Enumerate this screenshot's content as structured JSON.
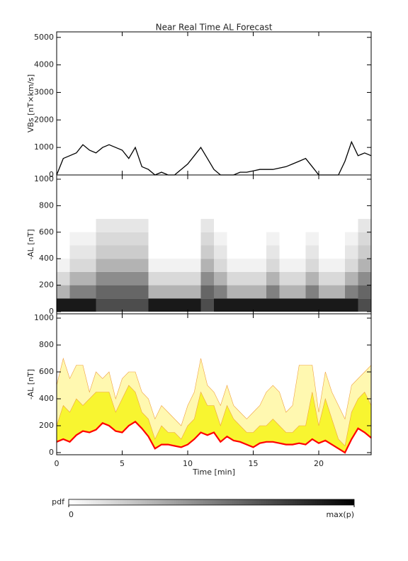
{
  "chart_data": [
    {
      "type": "line",
      "title": "Near Real Time AL Forecast",
      "ylabel": "VBs [nT×km/s]",
      "color": "#000000",
      "x": [
        0,
        0.5,
        1,
        1.5,
        2,
        2.5,
        3,
        3.5,
        4,
        4.5,
        5,
        5.5,
        6,
        6.5,
        7,
        7.5,
        8,
        8.5,
        9,
        9.5,
        10,
        10.5,
        11,
        11.5,
        12,
        12.5,
        13,
        13.5,
        14,
        14.5,
        15,
        15.5,
        16,
        16.5,
        17,
        17.5,
        18,
        18.5,
        19,
        19.5,
        20,
        20.5,
        21,
        21.5,
        22,
        22.5,
        23,
        23.5,
        24
      ],
      "values": [
        0,
        600,
        700,
        800,
        1100,
        900,
        800,
        1000,
        1100,
        1000,
        900,
        600,
        1000,
        300,
        200,
        0,
        100,
        0,
        0,
        200,
        400,
        700,
        1000,
        600,
        200,
        0,
        0,
        0,
        100,
        100,
        150,
        200,
        200,
        200,
        250,
        300,
        400,
        500,
        600,
        300,
        0,
        0,
        0,
        0,
        500,
        1200,
        700,
        800,
        700
      ],
      "xlim": [
        0,
        24
      ],
      "ylim": [
        0,
        5200
      ],
      "yticks": [
        0,
        1000,
        2000,
        3000,
        4000,
        5000
      ]
    },
    {
      "type": "heatmap",
      "ylabel": "-AL [nT]",
      "xbins": [
        0,
        1,
        2,
        3,
        4,
        5,
        6,
        7,
        8,
        9,
        10,
        11,
        12,
        13,
        14,
        15,
        16,
        17,
        18,
        19,
        20,
        21,
        22,
        23,
        24
      ],
      "ybins": [
        0,
        100,
        200,
        300,
        400,
        500,
        600,
        700
      ],
      "z": [
        [
          0.9,
          0.9,
          0.9,
          0.7,
          0.7,
          0.7,
          0.7,
          0.9,
          0.9,
          0.9,
          0.9,
          0.7,
          0.9,
          0.9,
          0.9,
          0.9,
          0.9,
          0.9,
          0.9,
          0.9,
          0.9,
          0.9,
          0.9,
          0.7
        ],
        [
          0.3,
          0.5,
          0.5,
          0.6,
          0.6,
          0.6,
          0.6,
          0.3,
          0.3,
          0.3,
          0.3,
          0.6,
          0.5,
          0.3,
          0.3,
          0.3,
          0.5,
          0.3,
          0.3,
          0.5,
          0.3,
          0.3,
          0.5,
          0.6
        ],
        [
          0.15,
          0.3,
          0.3,
          0.45,
          0.45,
          0.45,
          0.45,
          0.15,
          0.15,
          0.15,
          0.15,
          0.45,
          0.3,
          0.15,
          0.15,
          0.15,
          0.3,
          0.15,
          0.15,
          0.3,
          0.15,
          0.15,
          0.3,
          0.45
        ],
        [
          0.05,
          0.15,
          0.15,
          0.3,
          0.3,
          0.3,
          0.3,
          0.05,
          0.05,
          0.05,
          0.05,
          0.3,
          0.15,
          0.05,
          0.05,
          0.05,
          0.15,
          0.05,
          0.05,
          0.15,
          0.05,
          0.05,
          0.15,
          0.3
        ],
        [
          0,
          0.1,
          0.1,
          0.2,
          0.2,
          0.2,
          0.2,
          0,
          0,
          0,
          0,
          0.2,
          0.1,
          0,
          0,
          0,
          0.1,
          0,
          0,
          0.1,
          0,
          0,
          0.1,
          0.2
        ],
        [
          0,
          0.05,
          0.05,
          0.15,
          0.15,
          0.15,
          0.15,
          0,
          0,
          0,
          0,
          0.15,
          0.05,
          0,
          0,
          0,
          0.05,
          0,
          0,
          0.05,
          0,
          0,
          0.05,
          0.15
        ],
        [
          0,
          0,
          0,
          0.1,
          0.1,
          0.1,
          0.1,
          0,
          0,
          0,
          0,
          0.1,
          0,
          0,
          0,
          0,
          0,
          0,
          0,
          0,
          0,
          0,
          0,
          0.1
        ]
      ],
      "xlim": [
        0,
        24
      ],
      "ylim": [
        -16,
        1032
      ],
      "yticks": [
        0,
        200,
        400,
        600,
        800,
        1000
      ],
      "colorbar": {
        "label": "pdf",
        "zlim": [
          0,
          1
        ],
        "ticks": [
          0,
          {
            "value": 1,
            "label": "max(p)"
          }
        ]
      }
    },
    {
      "type": "band",
      "ylabel": "-AL [nT]",
      "xlabel": "Time [min]",
      "edge_color": "#f0a040",
      "x": [
        0,
        0.5,
        1,
        1.5,
        2,
        2.5,
        3,
        3.5,
        4,
        4.5,
        5,
        5.5,
        6,
        6.5,
        7,
        7.5,
        8,
        8.5,
        9,
        9.5,
        10,
        10.5,
        11,
        11.5,
        12,
        12.5,
        13,
        13.5,
        14,
        14.5,
        15,
        15.5,
        16,
        16.5,
        17,
        17.5,
        18,
        18.5,
        19,
        19.5,
        20,
        20.5,
        21,
        21.5,
        22,
        22.5,
        23,
        23.5,
        24
      ],
      "series": [
        {
          "color": "#ff0000",
          "values": [
            80,
            100,
            80,
            130,
            160,
            150,
            170,
            220,
            200,
            160,
            150,
            200,
            230,
            180,
            120,
            30,
            60,
            60,
            50,
            40,
            60,
            100,
            150,
            130,
            150,
            80,
            120,
            90,
            80,
            60,
            40,
            70,
            80,
            80,
            70,
            60,
            60,
            70,
            60,
            100,
            70,
            90,
            60,
            30,
            0,
            100,
            180,
            150,
            110
          ]
        },
        {
          "color": "#fff8b0",
          "values": [
            500,
            700,
            550,
            650,
            650,
            450,
            600,
            550,
            600,
            400,
            550,
            600,
            600,
            450,
            400,
            250,
            350,
            300,
            250,
            200,
            350,
            450,
            700,
            500,
            450,
            350,
            500,
            350,
            300,
            250,
            300,
            350,
            450,
            500,
            450,
            300,
            350,
            650,
            650,
            650,
            300,
            600,
            450,
            350,
            250,
            500,
            550,
            600,
            650
          ]
        },
        {
          "color": "#f8f530",
          "values": [
            200,
            350,
            300,
            400,
            350,
            400,
            450,
            450,
            450,
            300,
            400,
            500,
            450,
            300,
            250,
            100,
            200,
            150,
            150,
            100,
            200,
            250,
            450,
            350,
            350,
            200,
            350,
            250,
            200,
            150,
            150,
            200,
            200,
            250,
            200,
            150,
            150,
            200,
            200,
            450,
            200,
            400,
            250,
            100,
            50,
            300,
            400,
            450,
            350
          ]
        }
      ],
      "xlim": [
        0,
        24
      ],
      "ylim": [
        -16,
        1032
      ],
      "xticks": [
        0,
        5,
        10,
        15,
        20
      ],
      "yticks": [
        0,
        200,
        400,
        600,
        800,
        1000
      ]
    }
  ]
}
